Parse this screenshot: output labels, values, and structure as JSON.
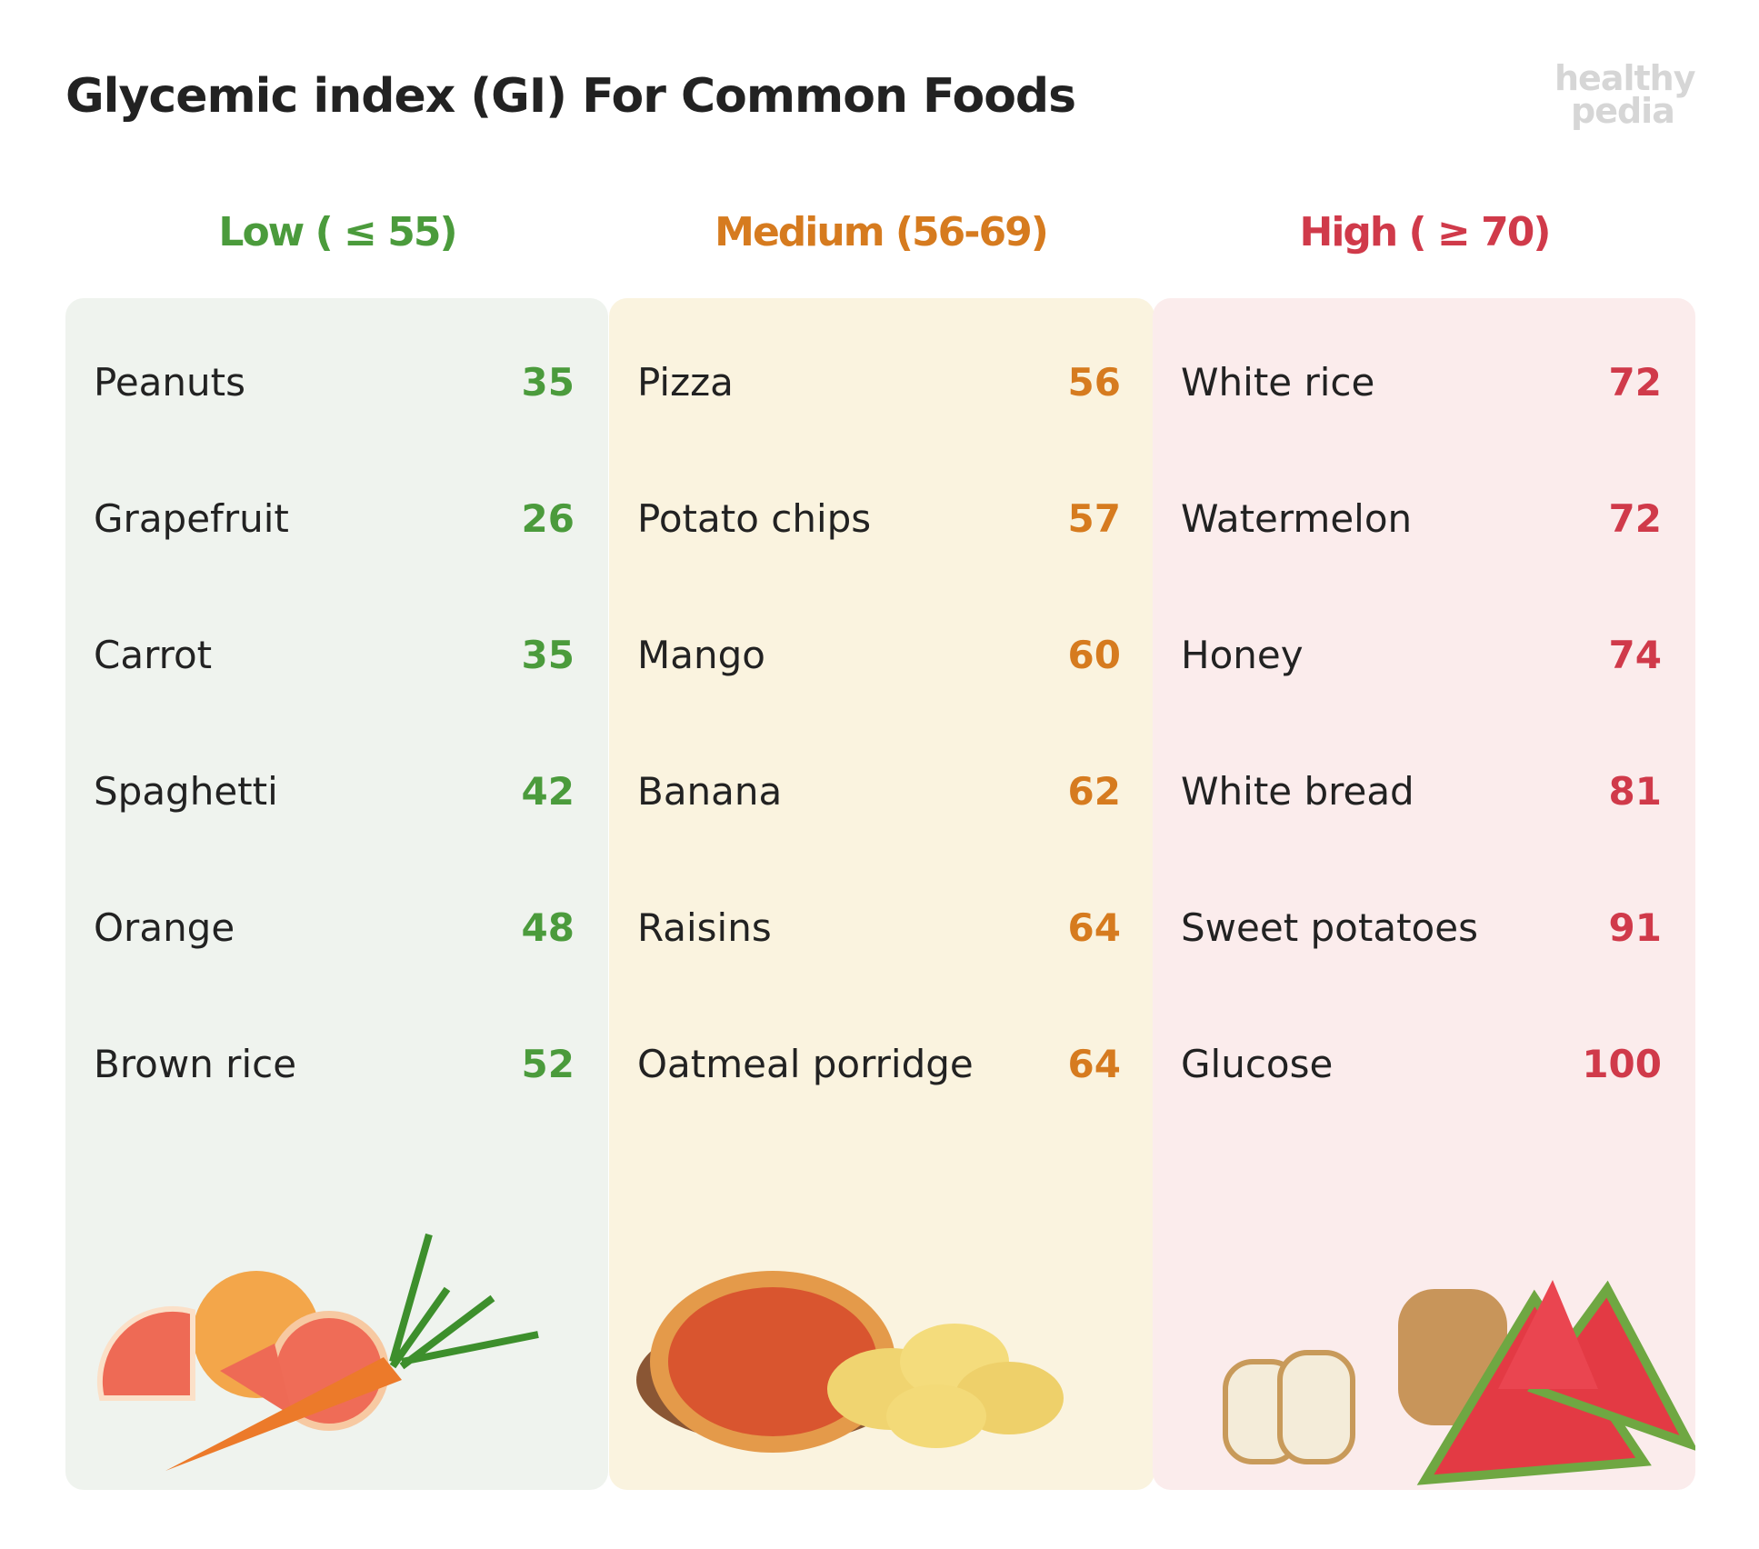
{
  "title": "Glycemic index (GI) For Common Foods",
  "logo": {
    "line1": "healthy",
    "line2": "pedia"
  },
  "columns": [
    {
      "heading": "Low ( ≤ 55)",
      "items": [
        {
          "name": "Peanuts",
          "value": 35
        },
        {
          "name": "Grapefruit",
          "value": 26
        },
        {
          "name": "Carrot",
          "value": 35
        },
        {
          "name": "Spaghetti",
          "value": 42
        },
        {
          "name": "Orange",
          "value": 48
        },
        {
          "name": "Brown rice",
          "value": 52
        }
      ]
    },
    {
      "heading": "Medium (56-69)",
      "items": [
        {
          "name": "Pizza",
          "value": 56
        },
        {
          "name": "Potato chips",
          "value": 57
        },
        {
          "name": "Mango",
          "value": 60
        },
        {
          "name": "Banana",
          "value": 62
        },
        {
          "name": "Raisins",
          "value": 64
        },
        {
          "name": "Oatmeal porridge",
          "value": 64
        }
      ]
    },
    {
      "heading": "High ( ≥ 70)",
      "items": [
        {
          "name": "White rice",
          "value": 72
        },
        {
          "name": "Watermelon",
          "value": 72
        },
        {
          "name": "Honey",
          "value": 74
        },
        {
          "name": "White bread",
          "value": 81
        },
        {
          "name": "Sweet potatoes",
          "value": 91
        },
        {
          "name": "Glucose",
          "value": 100
        }
      ]
    }
  ]
}
